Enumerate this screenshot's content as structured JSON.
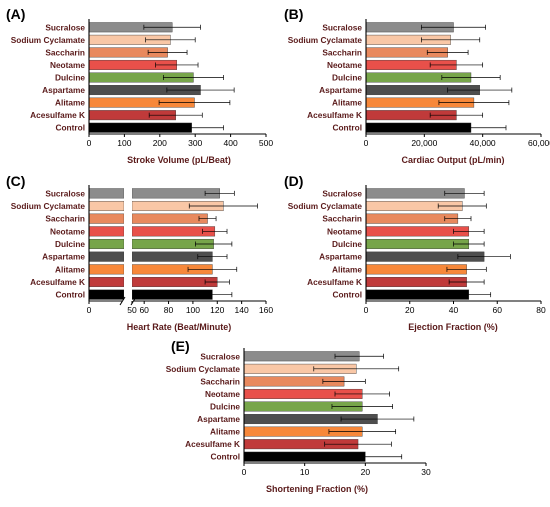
{
  "colors": {
    "axis": "#000000",
    "label_text": "#5a1a1a",
    "bars": [
      "#8c8c8c",
      "#f9c7a6",
      "#e8895e",
      "#e8504a",
      "#77a54a",
      "#4e4e4e",
      "#f7883a",
      "#c03a3a",
      "#000000"
    ]
  },
  "chart_data": [
    {
      "panel": "(A)",
      "type": "bar",
      "orientation": "horizontal",
      "categories": [
        "Sucralose",
        "Sodium Cyclamate",
        "Saccharin",
        "Neotame",
        "Dulcine",
        "Aspartame",
        "Alitame",
        "Acesulfame K",
        "Control"
      ],
      "values": [
        235,
        230,
        222,
        248,
        295,
        315,
        298,
        245,
        290
      ],
      "errors": [
        80,
        70,
        55,
        60,
        85,
        95,
        100,
        75,
        90
      ],
      "xlabel": "Stroke Volume (pL/Beat)",
      "xlim": [
        0,
        500
      ],
      "xticks": [
        "0",
        "100",
        "200",
        "300",
        "400",
        "500"
      ],
      "xtick_values": [
        0,
        100,
        200,
        300,
        400,
        500
      ],
      "grid": false
    },
    {
      "panel": "(B)",
      "type": "bar",
      "orientation": "horizontal",
      "categories": [
        "Sucralose",
        "Sodium Cyclamate",
        "Saccharin",
        "Neotame",
        "Dulcine",
        "Aspartame",
        "Alitame",
        "Acesulfame K",
        "Control"
      ],
      "values": [
        30000,
        29000,
        28000,
        31000,
        36000,
        39000,
        37000,
        31000,
        36000
      ],
      "errors": [
        11000,
        10000,
        7000,
        9000,
        10000,
        11000,
        12000,
        9000,
        12000
      ],
      "xlabel": "Cardiac Output (pL/min)",
      "xlim": [
        0,
        60000
      ],
      "xticks": [
        "0",
        "20,000",
        "40,000",
        "60,000"
      ],
      "xtick_values": [
        0,
        20000,
        40000,
        60000
      ],
      "grid": false
    },
    {
      "panel": "(C)",
      "type": "bar",
      "orientation": "horizontal",
      "axis_break": true,
      "categories": [
        "Sucralose",
        "Sodium Cyclamate",
        "Saccharin",
        "Neotame",
        "Dulcine",
        "Aspartame",
        "Alitame",
        "Acesulfame K",
        "Control"
      ],
      "values": [
        122,
        125,
        112,
        118,
        117,
        116,
        116,
        120,
        116
      ],
      "errors": [
        12,
        28,
        7,
        10,
        15,
        12,
        20,
        10,
        16
      ],
      "xlabel": "Heart Rate (Beat/Minute)",
      "xlim": [
        0,
        160
      ],
      "xticks": [
        "0",
        "50",
        "60",
        "80",
        "100",
        "120",
        "140",
        "160"
      ],
      "xtick_values": [
        0,
        50,
        60,
        80,
        100,
        120,
        140,
        160
      ],
      "grid": false
    },
    {
      "panel": "(D)",
      "type": "bar",
      "orientation": "horizontal",
      "categories": [
        "Sucralose",
        "Sodium Cyclamate",
        "Saccharin",
        "Neotame",
        "Dulcine",
        "Aspartame",
        "Alitame",
        "Acesulfame K",
        "Control"
      ],
      "values": [
        45,
        44,
        42,
        47,
        47,
        54,
        46,
        46,
        47
      ],
      "errors": [
        9,
        11,
        6,
        7,
        7,
        12,
        9,
        8,
        10
      ],
      "xlabel": "Ejection Fraction (%)",
      "xlim": [
        0,
        80
      ],
      "xticks": [
        "0",
        "20",
        "40",
        "60",
        "80"
      ],
      "xtick_values": [
        0,
        20,
        40,
        60,
        80
      ],
      "grid": false
    },
    {
      "panel": "(E)",
      "type": "bar",
      "orientation": "horizontal",
      "categories": [
        "Sucralose",
        "Sodium Cyclamate",
        "Saccharin",
        "Neotame",
        "Dulcine",
        "Aspartame",
        "Alitame",
        "Acesulfame K",
        "Control"
      ],
      "values": [
        19,
        18.5,
        16.5,
        19.5,
        19.5,
        22,
        19.5,
        18.8,
        20
      ],
      "errors": [
        4,
        7,
        3.5,
        4.5,
        5,
        6,
        5.5,
        5.5,
        6
      ],
      "xlabel": "Shortening Fraction (%)",
      "xlim": [
        0,
        30
      ],
      "xticks": [
        "0",
        "10",
        "20",
        "30"
      ],
      "xtick_values": [
        0,
        10,
        20,
        30
      ],
      "grid": false
    }
  ]
}
